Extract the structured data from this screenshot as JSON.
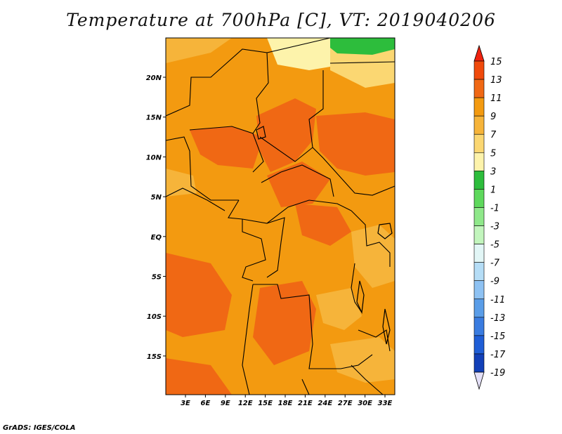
{
  "title": "Temperature at 700hPa [C], VT: 2019040206",
  "credit": "GrADS: IGES/COLA",
  "map": {
    "lat_ticks": [
      "20N",
      "15N",
      "10N",
      "5N",
      "EQ",
      "5S",
      "10S",
      "15S"
    ],
    "lon_ticks": [
      "3E",
      "6E",
      "9E",
      "12E",
      "15E",
      "18E",
      "21E",
      "24E",
      "27E",
      "30E",
      "33E"
    ]
  },
  "colorbar": {
    "labels": [
      "15",
      "13",
      "11",
      "9",
      "7",
      "5",
      "3",
      "1",
      "-1",
      "-3",
      "-5",
      "-7",
      "-9",
      "-11",
      "-13",
      "-15",
      "-17",
      "-19"
    ],
    "colors": [
      "#f0220f",
      "#f04a0c",
      "#f06814",
      "#f39a10",
      "#f6b43a",
      "#fbd772",
      "#fdf3ab",
      "#2dbd3c",
      "#5ed85c",
      "#8fe88a",
      "#c2f5bd",
      "#e2f6f6",
      "#b5ddf6",
      "#8ec2f3",
      "#5a9de8",
      "#3a7ce0",
      "#1f5ed6",
      "#1240b8",
      "#0c1e80"
    ]
  }
}
